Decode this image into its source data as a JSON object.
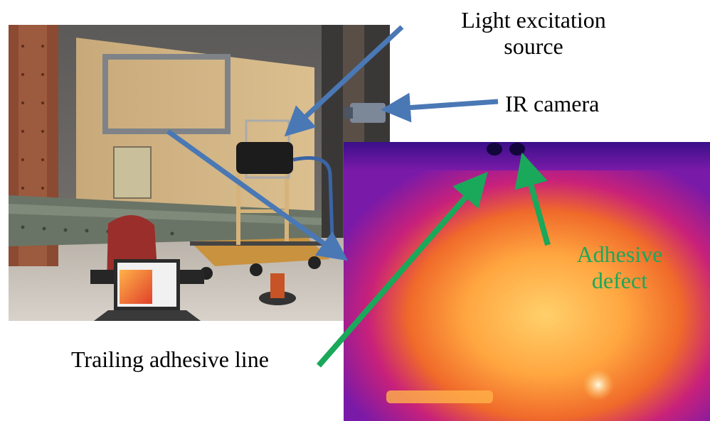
{
  "labels": {
    "light_source": [
      "Light excitation",
      "source"
    ],
    "ir_camera": "IR camera",
    "adhesive_defect": [
      "Adhesive",
      "defect"
    ],
    "trailing_line": "Trailing adhesive line"
  },
  "colors": {
    "blue_arrow": "#4a78b5",
    "green_arrow": "#1aa85a",
    "roi_box": "#7f8388",
    "label_green": "#1aa85a"
  }
}
